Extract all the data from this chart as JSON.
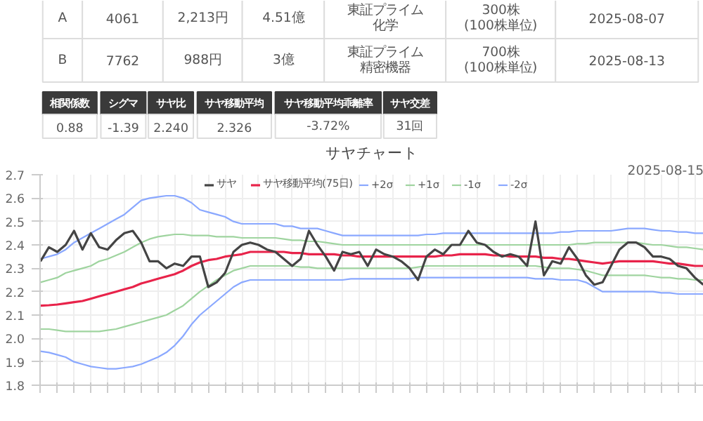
{
  "chart_data": [
    {
      "type": "other",
      "annotations": [
        "A",
        "4061",
        "2,213円",
        "4.51億",
        "東証プライム",
        "化学",
        "300株",
        "(100株単位)",
        "2025-08-07",
        "B",
        "7762",
        "988円",
        "3億",
        "東証プライム",
        "精密機器",
        "700株",
        "(100株単位)",
        "2025-08-13",
        "相関係数",
        "0.88",
        "シグマ",
        "-1.39",
        "サヤ比",
        "2.240",
        "サヤ移動平均",
        "2.326",
        "サヤ移動平均乖離率",
        "-3.72%",
        "サヤ交差",
        "31回"
      ]
    },
    {
      "type": "line",
      "title": "サヤチャート",
      "annotations": [
        "2025-08-15"
      ],
      "legend": "top",
      "grid": true,
      "marker": "none",
      "line_style": "solid",
      "tick_labels": "y",
      "ylim": [
        1.8,
        2.7
      ],
      "yticks": [
        1.8,
        1.9,
        {
          "value": 2,
          "label": "2.0"
        },
        2.1,
        2.2,
        2.3,
        2.4,
        2.5,
        2.6,
        2.7
      ],
      "categories": [
        null,
        null,
        null,
        null,
        null,
        null,
        null,
        null,
        null,
        null,
        null,
        null,
        null,
        null,
        null,
        null,
        null,
        null,
        null,
        null,
        null,
        null,
        null,
        null,
        null,
        null,
        null,
        null,
        null,
        null,
        null,
        null,
        null,
        null,
        null,
        null,
        null,
        null,
        null,
        null,
        null,
        null,
        null,
        null,
        null,
        null,
        null,
        null,
        null,
        null,
        null,
        null,
        null,
        null,
        null,
        null,
        null,
        null,
        null,
        null,
        null,
        null,
        null,
        null,
        null,
        null,
        null,
        null,
        null,
        null,
        null,
        null,
        null,
        null,
        null,
        null,
        null,
        null,
        null,
        null
      ],
      "series": [
        {
          "name": "サヤ",
          "color": "#444444",
          "values": [
            2.33,
            2.39,
            2.37,
            2.4,
            2.46,
            2.38,
            2.45,
            2.39,
            2.38,
            2.42,
            2.45,
            2.46,
            2.41,
            2.33,
            2.33,
            2.3,
            2.32,
            2.31,
            2.35,
            2.35,
            2.22,
            2.24,
            2.28,
            2.37,
            2.4,
            2.41,
            2.4,
            2.38,
            2.37,
            2.34,
            2.31,
            2.34,
            2.46,
            2.4,
            2.35,
            2.29,
            2.37,
            2.36,
            2.37,
            2.31,
            2.38,
            2.36,
            2.35,
            2.33,
            2.3,
            2.25,
            2.35,
            2.38,
            2.36,
            2.4,
            2.4,
            2.46,
            2.41,
            2.4,
            2.37,
            2.35,
            2.36,
            2.35,
            2.31,
            2.5,
            2.27,
            2.33,
            2.32,
            2.39,
            2.34,
            2.27,
            2.23,
            2.24,
            2.31,
            2.38,
            2.41,
            2.41,
            2.39,
            2.35,
            2.35,
            2.34,
            2.31,
            2.3,
            2.26,
            2.23
          ]
        },
        {
          "name": "サヤ移動平均(75日)",
          "color": "#e8234a",
          "values": [
            2.14,
            2.142,
            2.145,
            2.15,
            2.155,
            2.16,
            2.17,
            2.18,
            2.19,
            2.2,
            2.21,
            2.22,
            2.235,
            2.245,
            2.255,
            2.265,
            2.275,
            2.29,
            2.31,
            2.325,
            2.335,
            2.34,
            2.35,
            2.355,
            2.36,
            2.37,
            2.37,
            2.37,
            2.37,
            2.37,
            2.365,
            2.365,
            2.36,
            2.36,
            2.36,
            2.36,
            2.355,
            2.355,
            2.35,
            2.35,
            2.35,
            2.35,
            2.35,
            2.35,
            2.35,
            2.35,
            2.35,
            2.35,
            2.355,
            2.355,
            2.36,
            2.36,
            2.36,
            2.36,
            2.355,
            2.355,
            2.35,
            2.35,
            2.35,
            2.35,
            2.345,
            2.345,
            2.34,
            2.34,
            2.335,
            2.33,
            2.325,
            2.32,
            2.325,
            2.33,
            2.33,
            2.33,
            2.33,
            2.33,
            2.325,
            2.32,
            2.32,
            2.315,
            2.31,
            2.31
          ]
        },
        {
          "name": "+2σ",
          "color": "#8aa8ff",
          "values": [
            2.34,
            2.35,
            2.36,
            2.38,
            2.41,
            2.43,
            2.45,
            2.47,
            2.49,
            2.51,
            2.53,
            2.56,
            2.59,
            2.6,
            2.605,
            2.61,
            2.61,
            2.6,
            2.58,
            2.55,
            2.54,
            2.53,
            2.52,
            2.5,
            2.49,
            2.49,
            2.49,
            2.49,
            2.49,
            2.48,
            2.48,
            2.47,
            2.47,
            2.47,
            2.46,
            2.45,
            2.44,
            2.44,
            2.44,
            2.44,
            2.44,
            2.44,
            2.44,
            2.44,
            2.44,
            2.44,
            2.445,
            2.445,
            2.45,
            2.45,
            2.45,
            2.45,
            2.45,
            2.45,
            2.45,
            2.45,
            2.45,
            2.45,
            2.45,
            2.45,
            2.45,
            2.45,
            2.455,
            2.455,
            2.46,
            2.46,
            2.46,
            2.46,
            2.46,
            2.465,
            2.47,
            2.47,
            2.47,
            2.465,
            2.46,
            2.46,
            2.455,
            2.455,
            2.45,
            2.45
          ]
        },
        {
          "name": "+1σ",
          "color": "#9fd49f",
          "values": [
            2.24,
            2.25,
            2.26,
            2.28,
            2.29,
            2.3,
            2.31,
            2.33,
            2.34,
            2.355,
            2.37,
            2.39,
            2.41,
            2.425,
            2.435,
            2.44,
            2.445,
            2.445,
            2.44,
            2.44,
            2.44,
            2.435,
            2.435,
            2.435,
            2.43,
            2.43,
            2.43,
            2.43,
            2.43,
            2.425,
            2.42,
            2.42,
            2.415,
            2.415,
            2.41,
            2.405,
            2.4,
            2.4,
            2.4,
            2.4,
            2.4,
            2.4,
            2.4,
            2.4,
            2.4,
            2.4,
            2.4,
            2.4,
            2.4,
            2.4,
            2.4,
            2.4,
            2.4,
            2.4,
            2.4,
            2.4,
            2.4,
            2.4,
            2.4,
            2.4,
            2.4,
            2.4,
            2.4,
            2.4,
            2.405,
            2.405,
            2.41,
            2.41,
            2.41,
            2.41,
            2.41,
            2.41,
            2.405,
            2.4,
            2.4,
            2.395,
            2.39,
            2.39,
            2.385,
            2.38
          ]
        },
        {
          "name": "-1σ",
          "color": "#9fd49f",
          "values": [
            2.04,
            2.04,
            2.035,
            2.03,
            2.03,
            2.03,
            2.03,
            2.03,
            2.035,
            2.04,
            2.05,
            2.06,
            2.07,
            2.08,
            2.09,
            2.1,
            2.12,
            2.14,
            2.17,
            2.2,
            2.225,
            2.25,
            2.27,
            2.29,
            2.3,
            2.31,
            2.31,
            2.31,
            2.31,
            2.31,
            2.31,
            2.305,
            2.305,
            2.3,
            2.3,
            2.3,
            2.3,
            2.3,
            2.3,
            2.3,
            2.3,
            2.3,
            2.3,
            2.3,
            2.3,
            2.305,
            2.31,
            2.31,
            2.31,
            2.31,
            2.31,
            2.31,
            2.31,
            2.31,
            2.31,
            2.31,
            2.31,
            2.31,
            2.31,
            2.31,
            2.305,
            2.3,
            2.3,
            2.3,
            2.295,
            2.29,
            2.28,
            2.27,
            2.27,
            2.27,
            2.27,
            2.27,
            2.27,
            2.265,
            2.26,
            2.26,
            2.255,
            2.255,
            2.25,
            2.25
          ]
        },
        {
          "name": "-2σ",
          "color": "#8aa8ff",
          "values": [
            1.945,
            1.94,
            1.93,
            1.92,
            1.9,
            1.89,
            1.88,
            1.875,
            1.87,
            1.87,
            1.875,
            1.88,
            1.89,
            1.905,
            1.92,
            1.94,
            1.97,
            2.01,
            2.06,
            2.1,
            2.13,
            2.16,
            2.19,
            2.22,
            2.24,
            2.25,
            2.25,
            2.25,
            2.25,
            2.25,
            2.25,
            2.25,
            2.25,
            2.25,
            2.25,
            2.25,
            2.25,
            2.255,
            2.255,
            2.255,
            2.255,
            2.255,
            2.255,
            2.255,
            2.255,
            2.26,
            2.26,
            2.26,
            2.26,
            2.26,
            2.26,
            2.26,
            2.26,
            2.26,
            2.26,
            2.26,
            2.26,
            2.26,
            2.26,
            2.255,
            2.255,
            2.255,
            2.25,
            2.25,
            2.25,
            2.24,
            2.22,
            2.2,
            2.2,
            2.2,
            2.2,
            2.2,
            2.2,
            2.2,
            2.195,
            2.195,
            2.19,
            2.19,
            2.19,
            2.19
          ]
        }
      ]
    }
  ]
}
